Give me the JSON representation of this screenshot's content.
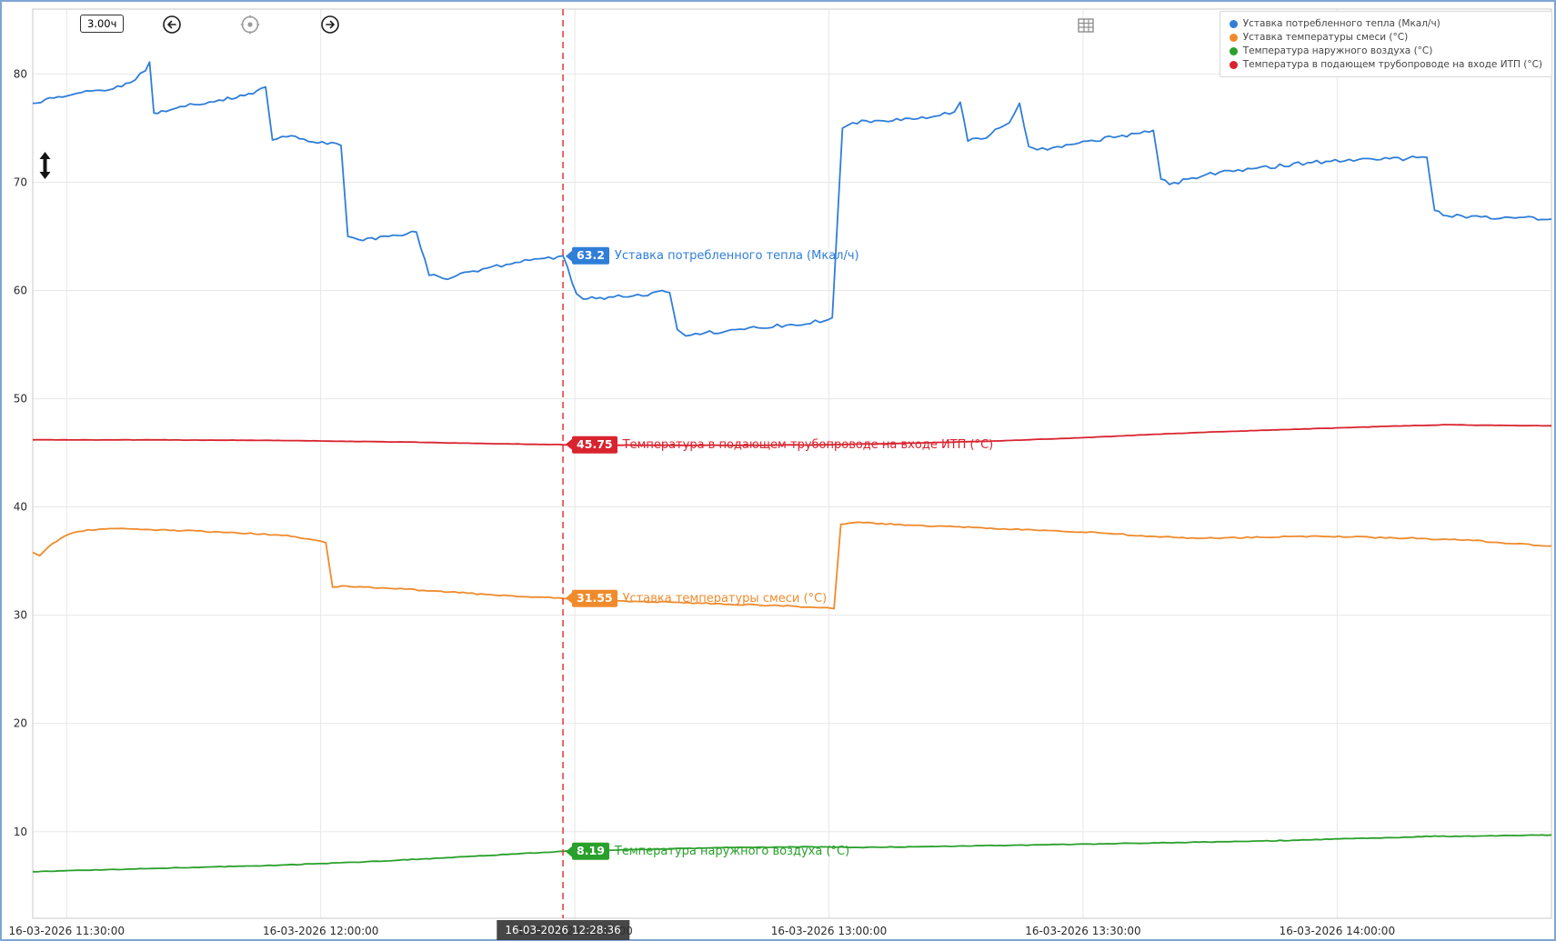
{
  "toolbar": {
    "range_label": "3.00ч",
    "icons": [
      "pan-left-icon",
      "live-center-icon",
      "pan-right-icon",
      "table-view-icon",
      "chart-view-icon",
      "resize-vertical-icon"
    ]
  },
  "legend_position": "top-right",
  "chart_data": {
    "type": "line",
    "title": "",
    "x_axis": {
      "unit": "minutes since 11:00 on 16-03-2026",
      "range": [
        26,
        205.3
      ],
      "ticks": [
        {
          "m": 30,
          "label": "16-03-2026 11:30:00"
        },
        {
          "m": 60,
          "label": "16-03-2026 12:00:00"
        },
        {
          "m": 90,
          "label": "16-03-2026 12:30:00"
        },
        {
          "m": 120,
          "label": "16-03-2026 13:00:00"
        },
        {
          "m": 150,
          "label": "16-03-2026 13:30:00"
        },
        {
          "m": 180,
          "label": "16-03-2026 14:00:00"
        }
      ]
    },
    "y_axis": {
      "range": [
        2,
        86
      ],
      "ticks": [
        10,
        20,
        30,
        40,
        50,
        60,
        70,
        80
      ]
    },
    "grid": true,
    "cursor": {
      "minutes": 88.6,
      "timestamp": "16-03-2026 12:28:36"
    },
    "series": [
      {
        "name": "Уставка потребленного тепла (Мкал/ч)",
        "color": "#2f7ed8",
        "cursor_value": "63.2",
        "jitter": 0.18,
        "points": [
          [
            26,
            77.3
          ],
          [
            29,
            77.9
          ],
          [
            34,
            78.5
          ],
          [
            37.5,
            79.2
          ],
          [
            39.3,
            80.3
          ],
          [
            39.8,
            81.1
          ],
          [
            40.3,
            76.4
          ],
          [
            41.2,
            76.6
          ],
          [
            44,
            77.0
          ],
          [
            48,
            77.6
          ],
          [
            51,
            78.0
          ],
          [
            53.5,
            78.8
          ],
          [
            54.3,
            73.9
          ],
          [
            56,
            74.2
          ],
          [
            58,
            74.0
          ],
          [
            62.4,
            73.4
          ],
          [
            63.2,
            65.0
          ],
          [
            64.5,
            64.7
          ],
          [
            68,
            65.0
          ],
          [
            71.3,
            65.4
          ],
          [
            72.8,
            61.4
          ],
          [
            74.5,
            61.1
          ],
          [
            78,
            61.8
          ],
          [
            83,
            62.6
          ],
          [
            88.6,
            63.2
          ],
          [
            90.2,
            59.7
          ],
          [
            91,
            59.2
          ],
          [
            94,
            59.4
          ],
          [
            98,
            59.5
          ],
          [
            100.3,
            60.0
          ],
          [
            101.2,
            59.8
          ],
          [
            102.1,
            56.4
          ],
          [
            103.1,
            55.8
          ],
          [
            105.4,
            56.1
          ],
          [
            110,
            56.4
          ],
          [
            115,
            56.8
          ],
          [
            119.5,
            57.2
          ],
          [
            120.4,
            57.5
          ],
          [
            121.6,
            75.0
          ],
          [
            122.8,
            75.5
          ],
          [
            126,
            75.7
          ],
          [
            129,
            75.9
          ],
          [
            132.5,
            76.1
          ],
          [
            134.8,
            76.5
          ],
          [
            135.5,
            77.4
          ],
          [
            136.4,
            73.8
          ],
          [
            138,
            74.0
          ],
          [
            141.3,
            75.5
          ],
          [
            142.5,
            77.3
          ],
          [
            143.6,
            73.3
          ],
          [
            144.6,
            73.0
          ],
          [
            147,
            73.3
          ],
          [
            150.5,
            73.8
          ],
          [
            156.2,
            74.5
          ],
          [
            158.3,
            74.8
          ],
          [
            159.2,
            70.3
          ],
          [
            160.2,
            69.8
          ],
          [
            164.5,
            70.7
          ],
          [
            170.5,
            71.3
          ],
          [
            176.5,
            71.8
          ],
          [
            182.5,
            72.1
          ],
          [
            188.3,
            72.2
          ],
          [
            190.6,
            72.3
          ],
          [
            191.5,
            67.4
          ],
          [
            193,
            66.9
          ],
          [
            197,
            66.8
          ],
          [
            201,
            66.7
          ],
          [
            205.3,
            66.6
          ]
        ]
      },
      {
        "name": "Уставка температуры смеси (°C)",
        "color": "#ef8b2d",
        "cursor_value": "31.55",
        "jitter": 0.06,
        "points": [
          [
            26,
            35.8
          ],
          [
            26.8,
            35.5
          ],
          [
            28.3,
            36.6
          ],
          [
            30.3,
            37.5
          ],
          [
            32.5,
            37.9
          ],
          [
            36,
            38.0
          ],
          [
            40,
            37.9
          ],
          [
            48,
            37.7
          ],
          [
            56,
            37.4
          ],
          [
            60.6,
            36.7
          ],
          [
            61.4,
            32.6
          ],
          [
            63,
            32.7
          ],
          [
            70,
            32.4
          ],
          [
            80,
            31.9
          ],
          [
            88.6,
            31.55
          ],
          [
            96,
            31.3
          ],
          [
            105,
            31.1
          ],
          [
            113,
            30.9
          ],
          [
            119.8,
            30.7
          ],
          [
            120.6,
            30.6
          ],
          [
            121.4,
            38.4
          ],
          [
            123.5,
            38.6
          ],
          [
            130,
            38.3
          ],
          [
            137,
            38.1
          ],
          [
            147,
            37.8
          ],
          [
            152,
            37.6
          ],
          [
            158,
            37.3
          ],
          [
            164,
            37.1
          ],
          [
            171,
            37.2
          ],
          [
            178,
            37.3
          ],
          [
            184,
            37.2
          ],
          [
            190,
            37.1
          ],
          [
            196,
            36.9
          ],
          [
            201,
            36.6
          ],
          [
            205.3,
            36.4
          ]
        ]
      },
      {
        "name": "Температура наружного воздуха (°C)",
        "color": "#2aa02c",
        "cursor_value": "8.19",
        "jitter": 0.03,
        "points": [
          [
            26,
            6.3
          ],
          [
            35,
            6.5
          ],
          [
            45,
            6.7
          ],
          [
            55,
            6.9
          ],
          [
            65,
            7.2
          ],
          [
            75,
            7.6
          ],
          [
            82,
            7.9
          ],
          [
            88.6,
            8.19
          ],
          [
            95,
            8.3
          ],
          [
            103,
            8.45
          ],
          [
            110,
            8.55
          ],
          [
            118,
            8.6
          ],
          [
            123,
            8.55
          ],
          [
            130,
            8.6
          ],
          [
            138,
            8.7
          ],
          [
            146,
            8.8
          ],
          [
            154,
            8.9
          ],
          [
            161,
            9.0
          ],
          [
            169,
            9.1
          ],
          [
            177,
            9.25
          ],
          [
            183,
            9.4
          ],
          [
            189,
            9.5
          ],
          [
            191.5,
            9.6
          ],
          [
            193.5,
            9.55
          ],
          [
            197,
            9.6
          ],
          [
            201,
            9.65
          ],
          [
            205.3,
            9.7
          ]
        ]
      },
      {
        "name": "Температура в подающем трубопроводе на входе ИТП (°C)",
        "color": "#d9232f",
        "cursor_value": "45.75",
        "jitter": 0.015,
        "points": [
          [
            26,
            46.2
          ],
          [
            40,
            46.2
          ],
          [
            55,
            46.15
          ],
          [
            70,
            46.0
          ],
          [
            80,
            45.85
          ],
          [
            88.6,
            45.75
          ],
          [
            100,
            45.7
          ],
          [
            110,
            45.7
          ],
          [
            120,
            45.75
          ],
          [
            130,
            45.9
          ],
          [
            140,
            46.1
          ],
          [
            150,
            46.4
          ],
          [
            158,
            46.7
          ],
          [
            166,
            46.95
          ],
          [
            174,
            47.15
          ],
          [
            182,
            47.35
          ],
          [
            188,
            47.5
          ],
          [
            193,
            47.6
          ],
          [
            197,
            47.55
          ],
          [
            205.3,
            47.5
          ]
        ]
      }
    ]
  }
}
